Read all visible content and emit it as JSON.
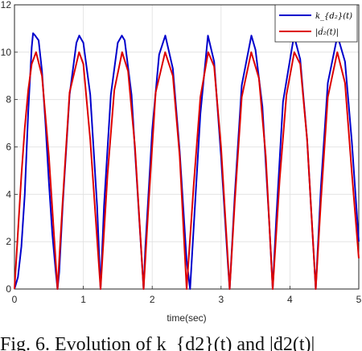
{
  "caption": "Fig. 6. Evolution of k_{d2}(t) and |ḋ2(t)|",
  "chart_data": {
    "type": "line",
    "xlabel": "time(sec)",
    "ylabel": "",
    "title": "",
    "xlim": [
      0,
      5
    ],
    "ylim": [
      0,
      12
    ],
    "xticks": [
      0,
      1,
      2,
      3,
      4,
      5
    ],
    "yticks": [
      0,
      2,
      4,
      6,
      8,
      10,
      12
    ],
    "xtick_labels": [
      "0",
      "1",
      "2",
      "3",
      "4",
      "5"
    ],
    "ytick_labels": [
      "0",
      "2",
      "4",
      "6",
      "8",
      "10",
      "12"
    ],
    "grid": true,
    "legend_position": "top-right",
    "series": [
      {
        "name": "k_{d2}(t)",
        "legend_label": "k_{d₂}(t)",
        "color": "#0000cc",
        "description_period": 0.625,
        "x": [
          0.0,
          0.05,
          0.1,
          0.15,
          0.2,
          0.25,
          0.27,
          0.3,
          0.35,
          0.4,
          0.45,
          0.5,
          0.55,
          0.6,
          0.625,
          0.65,
          0.7,
          0.8,
          0.9,
          0.94,
          1.0,
          1.1,
          1.2,
          1.25,
          1.3,
          1.4,
          1.5,
          1.56,
          1.6,
          1.7,
          1.8,
          1.875,
          1.9,
          2.0,
          2.1,
          2.19,
          2.3,
          2.4,
          2.5,
          2.55,
          2.6,
          2.7,
          2.81,
          2.9,
          3.0,
          3.1,
          3.125,
          3.2,
          3.3,
          3.44,
          3.5,
          3.6,
          3.7,
          3.75,
          3.8,
          3.9,
          4.06,
          4.15,
          4.25,
          4.375,
          4.45,
          4.55,
          4.69,
          4.8,
          4.9,
          5.0
        ],
        "values": [
          0.0,
          0.5,
          1.8,
          4.0,
          7.5,
          10.2,
          10.8,
          10.7,
          10.5,
          9.2,
          7.0,
          4.5,
          2.3,
          0.7,
          0.0,
          0.7,
          3.5,
          8.2,
          10.4,
          10.7,
          10.4,
          8.2,
          3.5,
          0.0,
          3.5,
          8.2,
          10.4,
          10.7,
          10.5,
          8.2,
          3.5,
          0.0,
          1.7,
          6.7,
          9.9,
          10.7,
          9.3,
          5.8,
          1.2,
          0.0,
          2.5,
          7.4,
          10.7,
          9.6,
          5.6,
          1.0,
          0.0,
          4.0,
          8.6,
          10.7,
          10.1,
          7.7,
          2.8,
          0.0,
          2.9,
          7.9,
          10.7,
          9.7,
          6.3,
          0.0,
          4.3,
          8.7,
          10.7,
          9.6,
          6.2,
          2.0
        ]
      },
      {
        "name": "|d2(t)|",
        "legend_label": "|ḋ₂(t)|",
        "color": "#dd0000",
        "x": [
          0.0,
          0.05,
          0.1,
          0.15,
          0.2,
          0.25,
          0.3125,
          0.4,
          0.5,
          0.625,
          0.7,
          0.8,
          0.9375,
          1.0,
          1.1,
          1.25,
          1.35,
          1.45,
          1.5625,
          1.65,
          1.75,
          1.875,
          1.95,
          2.05,
          2.1875,
          2.3,
          2.4,
          2.5,
          2.6,
          2.7,
          2.8125,
          2.9,
          3.0,
          3.125,
          3.2,
          3.3,
          3.4375,
          3.55,
          3.65,
          3.75,
          3.85,
          3.95,
          4.0625,
          4.15,
          4.25,
          4.375,
          4.45,
          4.55,
          4.6875,
          4.8,
          4.9,
          5.0
        ],
        "values": [
          0.0,
          2.4,
          4.8,
          6.8,
          8.4,
          9.5,
          10.0,
          9.0,
          5.6,
          0.0,
          3.7,
          8.3,
          10.0,
          9.5,
          6.3,
          0.0,
          4.8,
          8.4,
          10.0,
          9.2,
          6.0,
          0.0,
          3.7,
          8.3,
          10.0,
          9.0,
          5.6,
          0.0,
          4.3,
          8.1,
          10.0,
          9.4,
          6.0,
          0.0,
          3.7,
          8.1,
          10.0,
          8.9,
          5.6,
          0.0,
          4.6,
          8.2,
          10.0,
          9.5,
          6.3,
          0.0,
          3.7,
          8.1,
          10.0,
          8.7,
          4.9,
          1.3
        ]
      }
    ]
  }
}
